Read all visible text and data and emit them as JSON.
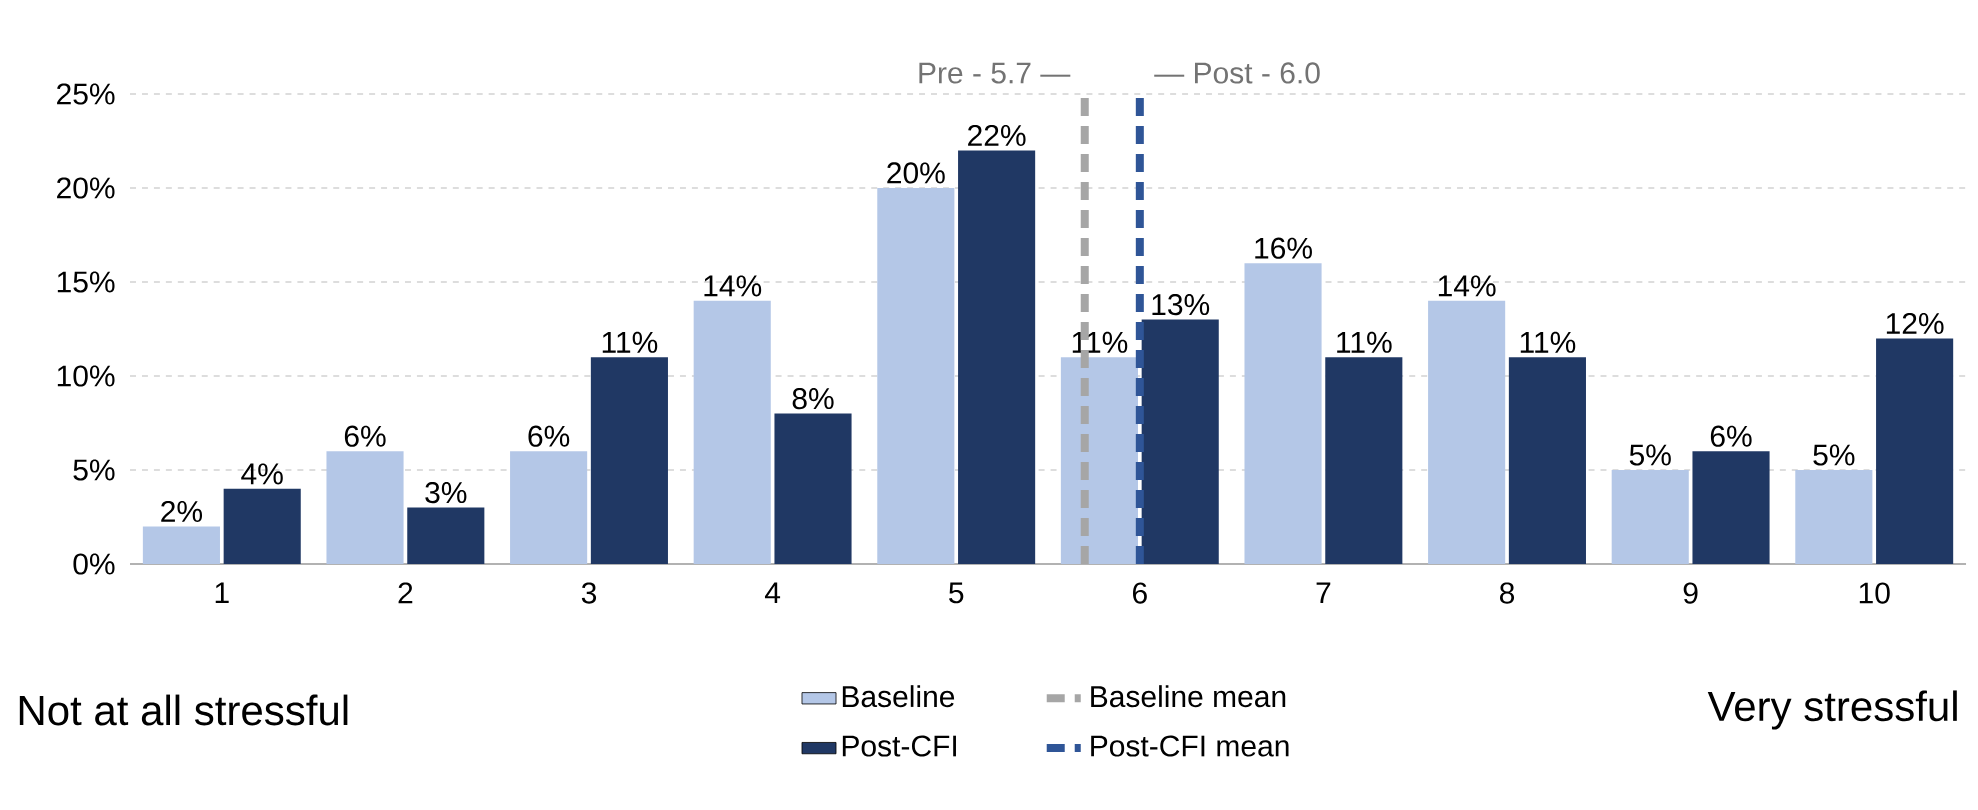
{
  "chart_data": {
    "type": "bar",
    "x": [
      1,
      2,
      3,
      4,
      5,
      6,
      7,
      8,
      9,
      10
    ],
    "xlim": [
      0.5,
      10.5
    ],
    "xticks": [
      1,
      2,
      3,
      4,
      5,
      6,
      7,
      8,
      9,
      10
    ],
    "ylim": [
      0,
      25
    ],
    "yticks": [
      {
        "value": 0,
        "label": "0%"
      },
      {
        "value": 5,
        "label": "5%"
      },
      {
        "value": 10,
        "label": "10%"
      },
      {
        "value": 15,
        "label": "15%"
      },
      {
        "value": 20,
        "label": "20%"
      },
      {
        "value": 25,
        "label": "25%"
      }
    ],
    "series": [
      {
        "name": "Baseline",
        "color": "#b4c7e7",
        "values": [
          2,
          6,
          6,
          14,
          20,
          11,
          16,
          14,
          5,
          5
        ],
        "value_labels": [
          "2%",
          "6%",
          "6%",
          "14%",
          "20%",
          "11%",
          "16%",
          "14%",
          "5%",
          "5%"
        ]
      },
      {
        "name": "Post-CFI",
        "color": "#203864",
        "values": [
          4,
          3,
          11,
          8,
          22,
          13,
          11,
          11,
          6,
          12
        ],
        "value_labels": [
          "4%",
          "3%",
          "11%",
          "8%",
          "22%",
          "13%",
          "11%",
          "11%",
          "6%",
          "12%"
        ]
      }
    ],
    "ref_lines": [
      {
        "axis": "x",
        "value": 5.7,
        "label": "Baseline mean",
        "color": "#a6a6a6",
        "line_style": "dashed"
      },
      {
        "axis": "x",
        "value": 6.0,
        "label": "Post-CFI mean",
        "color": "#2f5597",
        "line_style": "dashed"
      }
    ],
    "annotations": [
      "Not at all stressful",
      "Very stressful",
      {
        "text": "Pre - 5.7 —",
        "x": 5.7,
        "y": 25
      },
      {
        "text": "— Post - 6.0",
        "x": 6.0,
        "y": 25
      }
    ],
    "grid": "y",
    "legend": "bottom"
  }
}
